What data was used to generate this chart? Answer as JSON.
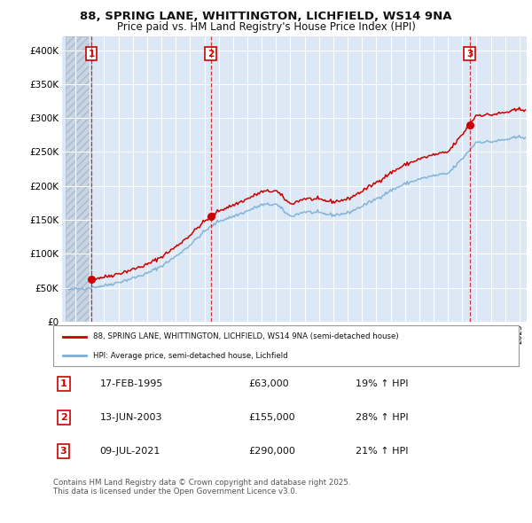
{
  "title": "88, SPRING LANE, WHITTINGTON, LICHFIELD, WS14 9NA",
  "subtitle": "Price paid vs. HM Land Registry's House Price Index (HPI)",
  "ylim": [
    0,
    420000
  ],
  "yticks": [
    0,
    50000,
    100000,
    150000,
    200000,
    250000,
    300000,
    350000,
    400000
  ],
  "ytick_labels": [
    "£0",
    "£50K",
    "£100K",
    "£150K",
    "£200K",
    "£250K",
    "£300K",
    "£350K",
    "£400K"
  ],
  "xlim_start": 1993.3,
  "xlim_end": 2025.5,
  "sales": [
    {
      "date_num": 1995.12,
      "price": 63000,
      "label": "1"
    },
    {
      "date_num": 2003.44,
      "price": 155000,
      "label": "2"
    },
    {
      "date_num": 2021.52,
      "price": 290000,
      "label": "3"
    }
  ],
  "sale_color": "#cc0000",
  "hpi_color": "#7aafd4",
  "legend_line1": "88, SPRING LANE, WHITTINGTON, LICHFIELD, WS14 9NA (semi-detached house)",
  "legend_line2": "HPI: Average price, semi-detached house, Lichfield",
  "table_rows": [
    {
      "num": "1",
      "date": "17-FEB-1995",
      "price": "£63,000",
      "hpi": "19% ↑ HPI"
    },
    {
      "num": "2",
      "date": "13-JUN-2003",
      "price": "£155,000",
      "hpi": "28% ↑ HPI"
    },
    {
      "num": "3",
      "date": "09-JUL-2021",
      "price": "£290,000",
      "hpi": "21% ↑ HPI"
    }
  ],
  "footer": "Contains HM Land Registry data © Crown copyright and database right 2025.\nThis data is licensed under the Open Government Licence v3.0.",
  "background_color": "#dce8f5",
  "grid_color": "#ffffff"
}
